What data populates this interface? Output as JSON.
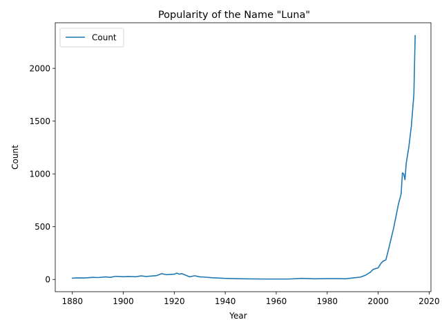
{
  "chart_data": {
    "type": "line",
    "title": "Popularity of the Name \"Luna\"",
    "xlabel": "Year",
    "ylabel": "Count",
    "xlim": [
      1873.3,
      2020.7
    ],
    "ylim": [
      -116,
      2432
    ],
    "x_ticks": [
      1880,
      1900,
      1920,
      1940,
      1960,
      1980,
      2000,
      2020
    ],
    "y_ticks": [
      0,
      500,
      1000,
      1500,
      2000
    ],
    "grid": false,
    "legend": "upper-left",
    "series": [
      {
        "name": "Count",
        "color": "#1f77b4",
        "points": [
          [
            1880,
            12
          ],
          [
            1882,
            15
          ],
          [
            1885,
            14
          ],
          [
            1888,
            20
          ],
          [
            1890,
            18
          ],
          [
            1893,
            24
          ],
          [
            1895,
            20
          ],
          [
            1897,
            30
          ],
          [
            1900,
            26
          ],
          [
            1902,
            28
          ],
          [
            1905,
            26
          ],
          [
            1907,
            34
          ],
          [
            1909,
            28
          ],
          [
            1911,
            32
          ],
          [
            1913,
            36
          ],
          [
            1915,
            55
          ],
          [
            1917,
            45
          ],
          [
            1920,
            50
          ],
          [
            1921,
            60
          ],
          [
            1922,
            50
          ],
          [
            1923,
            55
          ],
          [
            1925,
            35
          ],
          [
            1926,
            25
          ],
          [
            1928,
            35
          ],
          [
            1930,
            25
          ],
          [
            1932,
            22
          ],
          [
            1935,
            16
          ],
          [
            1940,
            10
          ],
          [
            1945,
            7
          ],
          [
            1950,
            5
          ],
          [
            1955,
            4
          ],
          [
            1960,
            4
          ],
          [
            1965,
            4
          ],
          [
            1970,
            10
          ],
          [
            1975,
            6
          ],
          [
            1980,
            8
          ],
          [
            1985,
            8
          ],
          [
            1987,
            6
          ],
          [
            1990,
            14
          ],
          [
            1993,
            22
          ],
          [
            1995,
            40
          ],
          [
            1997,
            70
          ],
          [
            1998,
            95
          ],
          [
            2000,
            110
          ],
          [
            2001,
            150
          ],
          [
            2002,
            175
          ],
          [
            2003,
            185
          ],
          [
            2004,
            280
          ],
          [
            2005,
            380
          ],
          [
            2006,
            480
          ],
          [
            2007,
            600
          ],
          [
            2008,
            720
          ],
          [
            2009,
            810
          ],
          [
            2009.5,
            1010
          ],
          [
            2010,
            1000
          ],
          [
            2010.5,
            945
          ],
          [
            2011,
            1100
          ],
          [
            2012,
            1250
          ],
          [
            2013,
            1450
          ],
          [
            2014,
            1750
          ],
          [
            2014.5,
            2310
          ]
        ]
      }
    ]
  }
}
